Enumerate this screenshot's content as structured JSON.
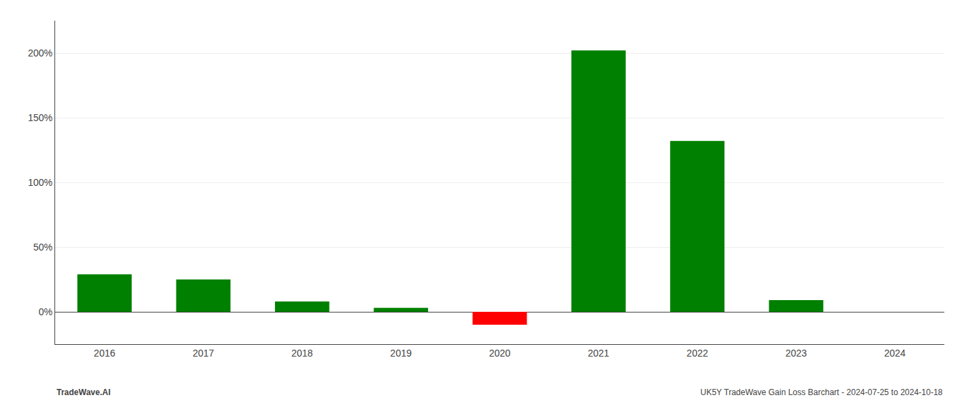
{
  "chart_data": {
    "type": "bar",
    "categories": [
      "2016",
      "2017",
      "2018",
      "2019",
      "2020",
      "2021",
      "2022",
      "2023",
      "2024"
    ],
    "values": [
      29,
      25,
      8,
      3,
      -10,
      202,
      132,
      9,
      0
    ],
    "colors": [
      "#008000",
      "#008000",
      "#008000",
      "#008000",
      "#ff0000",
      "#008000",
      "#008000",
      "#008000",
      "#008000"
    ],
    "ylim": [
      -25,
      225
    ],
    "yticks": [
      {
        "value": 0,
        "label": "0%"
      },
      {
        "value": 50,
        "label": "50%"
      },
      {
        "value": 100,
        "label": "100%"
      },
      {
        "value": 150,
        "label": "150%"
      },
      {
        "value": 200,
        "label": "200%"
      }
    ],
    "grid": true,
    "annotations": [
      "TradeWave.AI",
      "UK5Y TradeWave Gain Loss Barchart - 2024-07-25 to 2024-10-18"
    ]
  }
}
